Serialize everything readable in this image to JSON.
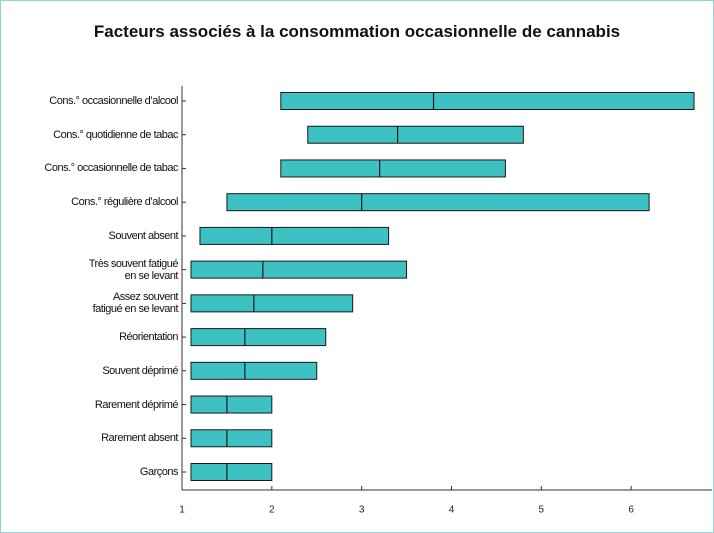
{
  "chart_data": {
    "type": "range",
    "title": "Facteurs associés à la consommation occasionnelle de cannabis",
    "categories": [
      "Cons.° occasionnelle d’alcool",
      "Cons.° quotidienne de tabac",
      "Cons.° occasionnelle de tabac",
      "Cons.° régulière d’alcool",
      "Souvent absent",
      "Très souvent fatigué\nen se levant",
      "Assez souvent\nfatigué en se levant",
      "Réorientation",
      "Souvent déprimé",
      "Rarement déprimé",
      "Rarement absent",
      "Garçons"
    ],
    "low": [
      2.1,
      2.4,
      2.1,
      1.5,
      1.2,
      1.1,
      1.1,
      1.1,
      1.1,
      1.1,
      1.1,
      1.1
    ],
    "values": [
      3.8,
      3.4,
      3.2,
      3.0,
      2.0,
      1.9,
      1.8,
      1.7,
      1.7,
      1.5,
      1.5,
      1.5
    ],
    "high": [
      6.7,
      4.8,
      4.6,
      6.2,
      3.3,
      3.5,
      2.9,
      2.6,
      2.5,
      2.0,
      2.0,
      2.0
    ],
    "color": "#3dc1c3",
    "xlim": [
      1,
      6.9
    ],
    "xticks": [
      1,
      2,
      3,
      4,
      5,
      6
    ]
  }
}
